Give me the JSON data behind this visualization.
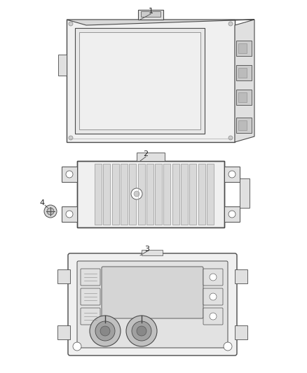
{
  "background_color": "#ffffff",
  "line_color": "#4a4a4a",
  "fill_light": "#f0f0f0",
  "fill_mid": "#e0e0e0",
  "fill_dark": "#cccccc",
  "label_color": "#222222",
  "label_fontsize": 8,
  "fig_width": 4.38,
  "fig_height": 5.33,
  "dpi": 100
}
